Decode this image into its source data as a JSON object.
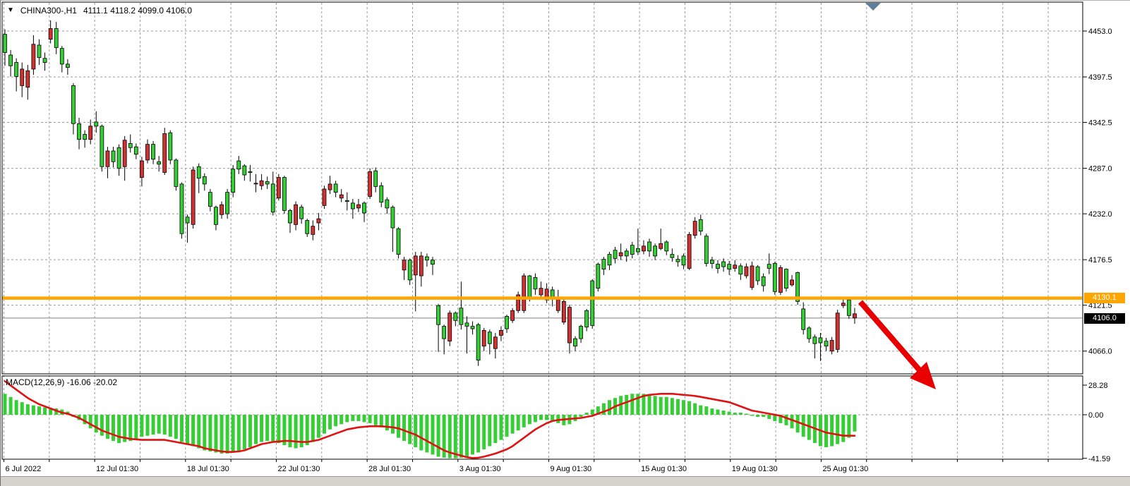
{
  "header": {
    "dropdown_icon": "▼",
    "symbol": "CHINA300-,H1",
    "ohlc": "4111.1 4118.2 4099.0 4106.0"
  },
  "price_labels": {
    "hline": "4130.1",
    "current": "4106.0"
  },
  "macd_label": "MACD(12,26,9) -16.06 -20.02",
  "chart_data": {
    "type": "candlestick",
    "title": "CHINA300-,H1",
    "symbol": "CHINA300-",
    "timeframe": "H1",
    "last_bar": {
      "open": 4111.1,
      "high": 4118.2,
      "low": 4099.0,
      "close": 4106.0
    },
    "y_axis": {
      "ticks": [
        4453.0,
        4397.5,
        4342.5,
        4287.0,
        4232.0,
        4176.5,
        4121.5,
        4066.0
      ],
      "tick_labels": [
        "4453.0",
        "4397.5",
        "4342.5",
        "4287.0",
        "4232.0",
        "4176.5",
        "4121.5",
        "4066.0"
      ],
      "ylim": [
        4039,
        4488
      ]
    },
    "x_axis": {
      "labels": [
        "6 Jul 2022",
        "12 Jul 01:30",
        "18 Jul 01:30",
        "22 Jul 01:30",
        "28 Jul 01:30",
        "3 Aug 01:30",
        "9 Aug 01:30",
        "15 Aug 01:30",
        "19 Aug 01:30",
        "25 Aug 01:30"
      ]
    },
    "horizontal_line": {
      "price": 4130.1,
      "color": "#FFA500"
    },
    "current_price": 4106.0,
    "colors": {
      "bull": "#35CE35",
      "bear": "#D03232",
      "wick": "#000000",
      "grid": "#9b9b9b",
      "signal_line": "#E01212",
      "hline": "#FFA500",
      "current_line": "#808080",
      "arrow": "#E80000",
      "scroll_marker": "#5f7f9b"
    },
    "candles": [
      [
        4427,
        4455,
        4411,
        4449
      ],
      [
        4411,
        4430,
        4398,
        4424
      ],
      [
        4398,
        4420,
        4380,
        4415
      ],
      [
        4407,
        4415,
        4373,
        4387
      ],
      [
        4405,
        4412,
        4370,
        4385
      ],
      [
        4437,
        4448,
        4400,
        4407
      ],
      [
        4421,
        4443,
        4412,
        4436
      ],
      [
        4415,
        4427,
        4405,
        4420
      ],
      [
        4456,
        4466,
        4438,
        4443
      ],
      [
        4433,
        4464,
        4425,
        4456
      ],
      [
        4413,
        4435,
        4403,
        4432
      ],
      [
        4409,
        4419,
        4400,
        4413
      ],
      [
        4341,
        4390,
        4328,
        4387
      ],
      [
        4322,
        4348,
        4310,
        4341
      ],
      [
        4322,
        4333,
        4312,
        4328
      ],
      [
        4338,
        4346,
        4316,
        4322
      ],
      [
        4338,
        4356,
        4330,
        4343
      ],
      [
        4289,
        4340,
        4283,
        4338
      ],
      [
        4308,
        4313,
        4275,
        4289
      ],
      [
        4295,
        4313,
        4288,
        4308
      ],
      [
        4287,
        4316,
        4278,
        4312
      ],
      [
        4321,
        4326,
        4272,
        4289
      ],
      [
        4312,
        4328,
        4306,
        4317
      ],
      [
        4304,
        4317,
        4298,
        4313
      ],
      [
        4296,
        4301,
        4265,
        4276
      ],
      [
        4316,
        4322,
        4293,
        4297
      ],
      [
        4298,
        4320,
        4292,
        4316
      ],
      [
        4292,
        4302,
        4283,
        4295
      ],
      [
        4329,
        4336,
        4279,
        4282
      ],
      [
        4297,
        4333,
        4292,
        4330
      ],
      [
        4265,
        4299,
        4260,
        4297
      ],
      [
        4208,
        4270,
        4202,
        4268
      ],
      [
        4221,
        4231,
        4197,
        4228
      ],
      [
        4285,
        4289,
        4214,
        4219
      ],
      [
        4275,
        4293,
        4257,
        4289
      ],
      [
        4268,
        4281,
        4260,
        4277
      ],
      [
        4241,
        4262,
        4235,
        4258
      ],
      [
        4219,
        4242,
        4212,
        4240
      ],
      [
        4243,
        4247,
        4226,
        4231
      ],
      [
        4232,
        4262,
        4226,
        4258
      ],
      [
        4258,
        4291,
        4252,
        4286
      ],
      [
        4286,
        4302,
        4280,
        4296
      ],
      [
        4279,
        4292,
        4272,
        4290
      ],
      [
        4282,
        4291,
        4271,
        4283
      ],
      [
        4269,
        4280,
        4258,
        4268
      ],
      [
        4272,
        4280,
        4261,
        4266
      ],
      [
        4268,
        4277,
        4262,
        4271
      ],
      [
        4234,
        4283,
        4230,
        4268
      ],
      [
        4276,
        4280,
        4248,
        4251
      ],
      [
        4236,
        4278,
        4232,
        4276
      ],
      [
        4221,
        4238,
        4209,
        4236
      ],
      [
        4243,
        4247,
        4212,
        4219
      ],
      [
        4226,
        4243,
        4220,
        4240
      ],
      [
        4208,
        4226,
        4204,
        4224
      ],
      [
        4217,
        4224,
        4200,
        4207
      ],
      [
        4226,
        4233,
        4212,
        4221
      ],
      [
        4262,
        4266,
        4238,
        4242
      ],
      [
        4268,
        4278,
        4256,
        4261
      ],
      [
        4258,
        4272,
        4252,
        4268
      ],
      [
        4255,
        4262,
        4246,
        4251
      ],
      [
        4248,
        4258,
        4236,
        4248
      ],
      [
        4238,
        4250,
        4226,
        4245
      ],
      [
        4243,
        4250,
        4234,
        4239
      ],
      [
        4233,
        4247,
        4222,
        4245
      ],
      [
        4283,
        4287,
        4250,
        4253
      ],
      [
        4265,
        4288,
        4258,
        4284
      ],
      [
        4246,
        4270,
        4240,
        4266
      ],
      [
        4239,
        4252,
        4232,
        4249
      ],
      [
        4215,
        4242,
        4186,
        4240
      ],
      [
        4183,
        4216,
        4178,
        4214
      ],
      [
        4176,
        4180,
        4152,
        4164
      ],
      [
        4152,
        4178,
        4146,
        4176
      ],
      [
        4181,
        4186,
        4114,
        4158
      ],
      [
        4181,
        4186,
        4144,
        4157
      ],
      [
        4176,
        4184,
        4168,
        4180
      ],
      [
        4171,
        4180,
        4158,
        4176
      ],
      [
        4098,
        4123,
        4065,
        4121
      ],
      [
        4081,
        4098,
        4062,
        4096
      ],
      [
        4112,
        4115,
        4072,
        4078
      ],
      [
        4103,
        4114,
        4096,
        4112
      ],
      [
        4098,
        4150,
        4092,
        4118
      ],
      [
        4096,
        4108,
        4063,
        4100
      ],
      [
        4093,
        4102,
        4086,
        4096
      ],
      [
        4055,
        4100,
        4048,
        4098
      ],
      [
        4091,
        4094,
        4066,
        4072
      ],
      [
        4075,
        4092,
        4062,
        4089
      ],
      [
        4083,
        4088,
        4057,
        4069
      ],
      [
        4091,
        4096,
        4078,
        4085
      ],
      [
        4093,
        4110,
        4088,
        4108
      ],
      [
        4115,
        4118,
        4100,
        4103
      ],
      [
        4134,
        4138,
        4112,
        4115
      ],
      [
        4157,
        4160,
        4112,
        4115
      ],
      [
        4131,
        4158,
        4126,
        4157
      ],
      [
        4141,
        4160,
        4134,
        4155
      ],
      [
        4142,
        4150,
        4130,
        4134
      ],
      [
        4141,
        4148,
        4124,
        4128
      ],
      [
        4130,
        4144,
        4120,
        4140
      ],
      [
        4131,
        4140,
        4112,
        4115
      ],
      [
        4126,
        4130,
        4098,
        4101
      ],
      [
        4119,
        4122,
        4063,
        4076
      ],
      [
        4072,
        4084,
        4066,
        4081
      ],
      [
        4081,
        4098,
        4076,
        4096
      ],
      [
        4095,
        4117,
        4090,
        4115
      ],
      [
        4097,
        4153,
        4093,
        4151
      ],
      [
        4142,
        4173,
        4138,
        4171
      ],
      [
        4165,
        4180,
        4158,
        4177
      ],
      [
        4170,
        4186,
        4164,
        4183
      ],
      [
        4178,
        4192,
        4172,
        4188
      ],
      [
        4185,
        4196,
        4176,
        4181
      ],
      [
        4181,
        4190,
        4174,
        4187
      ],
      [
        4183,
        4198,
        4178,
        4194
      ],
      [
        4186,
        4214,
        4182,
        4190
      ],
      [
        4193,
        4200,
        4183,
        4187
      ],
      [
        4187,
        4202,
        4180,
        4198
      ],
      [
        4181,
        4196,
        4176,
        4193
      ],
      [
        4196,
        4214,
        4188,
        4190
      ],
      [
        4187,
        4200,
        4182,
        4198
      ],
      [
        4179,
        4190,
        4174,
        4183
      ],
      [
        4174,
        4182,
        4168,
        4177
      ],
      [
        4170,
        4184,
        4165,
        4181
      ],
      [
        4207,
        4210,
        4164,
        4166
      ],
      [
        4223,
        4228,
        4202,
        4206
      ],
      [
        4211,
        4231,
        4206,
        4225
      ],
      [
        4172,
        4208,
        4168,
        4205
      ],
      [
        4172,
        4180,
        4166,
        4176
      ],
      [
        4166,
        4176,
        4160,
        4171
      ],
      [
        4168,
        4178,
        4162,
        4174
      ],
      [
        4165,
        4175,
        4158,
        4171
      ],
      [
        4170,
        4176,
        4162,
        4166
      ],
      [
        4159,
        4172,
        4152,
        4169
      ],
      [
        4168,
        4172,
        4154,
        4157
      ],
      [
        4169,
        4174,
        4140,
        4143
      ],
      [
        4151,
        4170,
        4146,
        4168
      ],
      [
        4145,
        4160,
        4138,
        4156
      ],
      [
        4166,
        4184,
        4159,
        4171
      ],
      [
        4138,
        4174,
        4134,
        4172
      ],
      [
        4167,
        4170,
        4134,
        4137
      ],
      [
        4142,
        4166,
        4138,
        4165
      ],
      [
        4152,
        4158,
        4144,
        4146
      ],
      [
        4126,
        4162,
        4122,
        4161
      ],
      [
        4092,
        4125,
        4086,
        4117
      ],
      [
        4081,
        4096,
        4076,
        4094
      ],
      [
        4075,
        4086,
        4057,
        4083
      ],
      [
        4076,
        4088,
        4054,
        4082
      ],
      [
        4072,
        4082,
        4066,
        4078
      ],
      [
        4079,
        4083,
        4062,
        4066
      ],
      [
        4112,
        4116,
        4064,
        4068
      ],
      [
        4124,
        4131,
        4118,
        4121
      ],
      [
        4109,
        4129,
        4105,
        4128
      ],
      [
        4111.1,
        4118.2,
        4099,
        4106
      ]
    ],
    "macd": {
      "label": "MACD(12,26,9) -16.06 -20.02",
      "params": "12,26,9",
      "main_value": -16.06,
      "signal_value": -20.02,
      "axis_ticks": [
        28.28,
        0.0,
        -41.59
      ],
      "axis_tick_labels": [
        "28.28",
        "0.00",
        "-41.59"
      ],
      "histogram": [
        20,
        17,
        14,
        12,
        10,
        9,
        8,
        7,
        6,
        6,
        5,
        3,
        -2,
        -5,
        -9,
        -13,
        -17,
        -20,
        -23,
        -25,
        -27,
        -26,
        -25,
        -23,
        -21,
        -20,
        -19,
        -18,
        -19,
        -21,
        -23,
        -26,
        -28,
        -30,
        -32,
        -34,
        -35,
        -36,
        -37,
        -37,
        -36,
        -35,
        -33,
        -31,
        -28,
        -26,
        -25,
        -26,
        -27,
        -29,
        -31,
        -32,
        -31,
        -29,
        -26,
        -22,
        -18,
        -14,
        -11,
        -9,
        -7,
        -6,
        -6,
        -7,
        -8,
        -10,
        -12,
        -15,
        -18,
        -22,
        -25,
        -28,
        -31,
        -34,
        -36,
        -38,
        -40,
        -41,
        -41.5,
        -41.5,
        -41,
        -40,
        -38,
        -36,
        -33,
        -30,
        -27,
        -24,
        -21,
        -18,
        -15,
        -12,
        -9,
        -7,
        -5,
        -5,
        -6,
        -8,
        -10,
        -9,
        -6,
        -2,
        2,
        5,
        8,
        11,
        14,
        16,
        18,
        19,
        20,
        20,
        20,
        19,
        18,
        17,
        17,
        16,
        15,
        14,
        13,
        11,
        9,
        8,
        6,
        5,
        4,
        3,
        2,
        2,
        1,
        -1,
        -2,
        -2,
        -4,
        -6,
        -8,
        -10,
        -13,
        -17,
        -21,
        -24,
        -27,
        -30,
        -31,
        -30,
        -28,
        -26,
        -22,
        -16
      ],
      "signal": [
        32,
        28,
        24,
        20,
        16,
        13,
        10,
        8,
        6,
        4,
        2,
        1,
        -1,
        -3,
        -6,
        -9,
        -12,
        -15,
        -17,
        -19,
        -21,
        -22,
        -23,
        -23.5,
        -24,
        -24,
        -24,
        -24,
        -24,
        -25,
        -26,
        -27,
        -28,
        -29,
        -30,
        -32,
        -33,
        -34,
        -35,
        -35.5,
        -35.5,
        -35,
        -34,
        -32,
        -30,
        -28,
        -27,
        -26,
        -25.5,
        -25,
        -25,
        -25.5,
        -26,
        -26,
        -25,
        -24,
        -22,
        -20,
        -18,
        -16,
        -14,
        -13,
        -12,
        -11.5,
        -11,
        -11,
        -11,
        -11.5,
        -12,
        -13,
        -15,
        -17,
        -19,
        -22,
        -25,
        -28,
        -31,
        -34,
        -36,
        -37.5,
        -39,
        -40.5,
        -41.3,
        -41,
        -40,
        -38.5,
        -37,
        -35,
        -33,
        -30,
        -26,
        -22,
        -18,
        -14,
        -11,
        -8,
        -6,
        -5,
        -4.5,
        -4,
        -3.5,
        -3,
        -2,
        -1,
        1,
        3,
        5,
        8,
        10,
        12,
        14,
        16,
        18,
        19,
        19.5,
        20,
        20,
        20,
        19.5,
        19,
        18.5,
        18,
        17,
        16,
        15,
        14,
        13,
        12,
        10,
        8,
        6,
        4,
        3,
        2,
        1,
        0,
        -1,
        -3,
        -5,
        -7,
        -9,
        -11,
        -13,
        -15,
        -17,
        -18,
        -19,
        -20,
        -20,
        -20
      ]
    },
    "annotations": {
      "arrow": {
        "direction": "down-right",
        "color": "#E80000"
      },
      "scroll_marker": {
        "shape": "triangle-down",
        "color": "#5f7f9b"
      }
    }
  }
}
